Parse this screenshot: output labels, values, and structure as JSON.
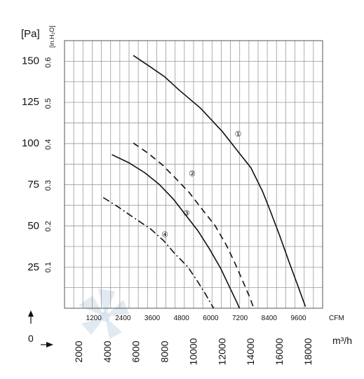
{
  "chart_data": {
    "type": "line",
    "y_units": {
      "pa": "[Pa]",
      "inh2o": "[in.H₂O]"
    },
    "x_units": {
      "cfm": "CFM",
      "m3h": "m³/h"
    },
    "y_ticks_pa": [
      "25",
      "50",
      "75",
      "100",
      "125",
      "150"
    ],
    "y_ticks_inh2o": [
      "0.1",
      "0.2",
      "0.3",
      "0.4",
      "0.5",
      "0.6"
    ],
    "x_ticks_cfm": [
      "1200",
      "2400",
      "3600",
      "4800",
      "6000",
      "7200",
      "8400",
      "9600"
    ],
    "x_ticks_m3h": [
      "2000",
      "4000",
      "6000",
      "8000",
      "10000",
      "12000",
      "14000",
      "16000",
      "18000"
    ],
    "origin_label": "0",
    "ylim_pa": [
      0,
      162
    ],
    "xlim_m3h": [
      0,
      18000
    ],
    "grid": true,
    "series": [
      {
        "label": "①",
        "style": "solid",
        "points": [
          [
            4800,
            153
          ],
          [
            6000,
            146
          ],
          [
            7000,
            140
          ],
          [
            8000,
            132
          ],
          [
            9500,
            121
          ],
          [
            11000,
            107
          ],
          [
            12000,
            96
          ],
          [
            13000,
            85
          ],
          [
            13800,
            71
          ],
          [
            14300,
            60
          ],
          [
            15000,
            44
          ],
          [
            15700,
            27
          ],
          [
            16300,
            13
          ],
          [
            16800,
            1
          ]
        ]
      },
      {
        "label": "②",
        "style": "dashed",
        "points": [
          [
            4800,
            100
          ],
          [
            5800,
            94
          ],
          [
            6800,
            87
          ],
          [
            7600,
            80
          ],
          [
            8700,
            70
          ],
          [
            9500,
            61
          ],
          [
            10500,
            50
          ],
          [
            11300,
            38
          ],
          [
            11900,
            27
          ],
          [
            12500,
            15
          ],
          [
            12900,
            7
          ],
          [
            13200,
            0
          ]
        ]
      },
      {
        "label": "③",
        "style": "solid",
        "points": [
          [
            3300,
            93
          ],
          [
            4500,
            88
          ],
          [
            5600,
            82
          ],
          [
            6600,
            75
          ],
          [
            7600,
            66
          ],
          [
            8400,
            57
          ],
          [
            9300,
            47
          ],
          [
            10100,
            36
          ],
          [
            10900,
            24
          ],
          [
            11500,
            13
          ],
          [
            12000,
            4
          ],
          [
            12200,
            0
          ]
        ]
      },
      {
        "label": "④",
        "style": "dashdot",
        "points": [
          [
            2700,
            67
          ],
          [
            3800,
            61
          ],
          [
            4800,
            55
          ],
          [
            6000,
            48
          ],
          [
            6900,
            41
          ],
          [
            7700,
            33
          ],
          [
            8600,
            25
          ],
          [
            9300,
            16
          ],
          [
            9800,
            9
          ],
          [
            10400,
            0
          ]
        ]
      }
    ],
    "label_positions": [
      {
        "label": "①",
        "x": 12100,
        "y": 104
      },
      {
        "label": "②",
        "x": 8900,
        "y": 80
      },
      {
        "label": "③",
        "x": 8500,
        "y": 56
      },
      {
        "label": "④",
        "x": 7000,
        "y": 43
      }
    ]
  }
}
